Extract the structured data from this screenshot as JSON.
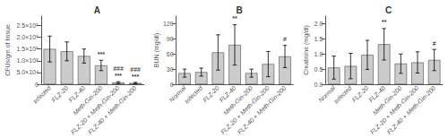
{
  "chart_data": [
    {
      "type": "bar",
      "title": "A",
      "ylabel": "CFUs/gm of tissue",
      "categories": [
        "Infected",
        "FLZ-20",
        "FLZ-40",
        "Meth-Gin-200",
        "FLZ-20 + Meth-Gin-200",
        "FLZ-40 + Meth-Gin-200"
      ],
      "values": [
        150000,
        140000,
        120000,
        80000,
        7000,
        5000
      ],
      "errors": [
        55000,
        40000,
        30000,
        22000,
        4000,
        3000
      ],
      "color": "#cccccc",
      "ylim": [
        0,
        290000
      ],
      "yticks": [
        0,
        {
          "value": 50000,
          "label": "5.0×10⁴"
        },
        {
          "value": 100000,
          "label": "1.0×10⁵"
        },
        {
          "value": 150000,
          "label": "1.5×10⁵"
        },
        {
          "value": 200000,
          "label": "2.0×10⁵"
        },
        {
          "value": 250000,
          "label": "2.5×10⁵"
        }
      ],
      "grid": false,
      "annotations": [
        {
          "text": "***",
          "x": "Meth-Gin-200",
          "y": 108000
        },
        {
          "text": "###\n***",
          "x": "FLZ-20 + Meth-Gin-200",
          "y": 16000
        },
        {
          "text": "###\n***",
          "x": "FLZ-40 + Meth-Gin-200",
          "y": 12000
        }
      ]
    },
    {
      "type": "bar",
      "title": "B",
      "ylabel": "BUN (mg/dl)",
      "categories": [
        "Normal",
        "Infected",
        "FLZ-20",
        "FLZ-40",
        "Meth-Gin-200",
        "FLZ-20 + Meth-Gin-200",
        "FLZ-40 + Meth-Gin-200"
      ],
      "values": [
        22,
        24,
        63,
        78,
        22,
        40,
        55
      ],
      "errors": [
        8,
        8,
        35,
        40,
        8,
        25,
        22
      ],
      "color": "#cccccc",
      "ylim": [
        0,
        135
      ],
      "yticks": [
        0,
        30,
        60,
        90,
        120
      ],
      "grid": false,
      "annotations": [
        {
          "text": "**",
          "x": "FLZ-40",
          "y": 122
        },
        {
          "text": "≠",
          "x": "FLZ-40 + Meth-Gin-200",
          "y": 80
        }
      ]
    },
    {
      "type": "bar",
      "title": "C",
      "ylabel": "Creatinine (mg/dl)",
      "categories": [
        "Normal",
        "Infected",
        "FLZ-20",
        "FLZ-40",
        "Meth-Gin-200",
        "FLZ-20 + Meth-Gin-200",
        "FLZ-40 + Meth-Gin-200"
      ],
      "values": [
        0.55,
        0.6,
        0.97,
        1.32,
        0.68,
        0.72,
        0.8
      ],
      "errors": [
        0.38,
        0.42,
        0.48,
        0.52,
        0.32,
        0.35,
        0.35
      ],
      "color": "#cccccc",
      "ylim": [
        0,
        2.25
      ],
      "yticks": [
        {
          "value": 0.0,
          "label": "0.0"
        },
        0.5,
        {
          "value": 1.0,
          "label": "1.0"
        },
        1.5,
        {
          "value": 2.0,
          "label": "2.0"
        }
      ],
      "grid": false,
      "annotations": [
        {
          "text": "**",
          "x": "FLZ-40",
          "y": 1.9
        },
        {
          "text": "≠",
          "x": "FLZ-40 + Meth-Gin-200",
          "y": 1.2
        }
      ]
    }
  ]
}
